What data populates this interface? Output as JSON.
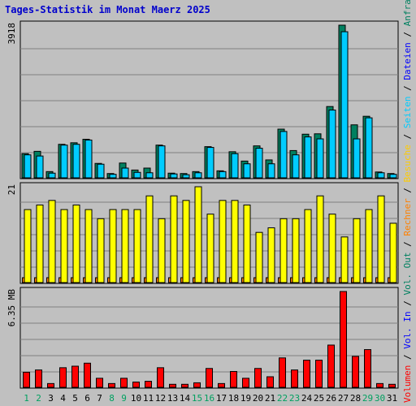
{
  "chart_data": {
    "type": "bar",
    "title": "Tages-Statistik im Monat Maerz 2025",
    "days": [
      "1",
      "2",
      "3",
      "4",
      "5",
      "6",
      "7",
      "8",
      "9",
      "10",
      "11",
      "12",
      "13",
      "14",
      "15",
      "16",
      "17",
      "18",
      "19",
      "20",
      "21",
      "22",
      "23",
      "24",
      "25",
      "26",
      "27",
      "28",
      "29",
      "30",
      "31"
    ],
    "weekend_days": [
      1,
      2,
      8,
      9,
      15,
      16,
      22,
      23,
      29,
      30
    ],
    "panels": [
      {
        "name": "requests-files",
        "ymax_label": "3918",
        "ymax": 3918,
        "series": [
          {
            "name": "Anfragen",
            "color": "#008060",
            "values": [
              620,
              680,
              160,
              860,
              900,
              990,
              370,
              110,
              380,
              200,
              250,
              840,
              120,
              110,
              160,
              800,
              180,
              670,
              430,
              820,
              460,
              1250,
              700,
              1120,
              1130,
              1830,
              3918,
              1360,
              1580,
              150,
              110
            ]
          },
          {
            "name": "Dateien",
            "color": "#00ccff",
            "values": [
              590,
              560,
              120,
              840,
              860,
              970,
              350,
              90,
              250,
              140,
              130,
              820,
              100,
              80,
              130,
              780,
              160,
              620,
              360,
              760,
              360,
              1190,
              590,
              1050,
              1000,
              1740,
              3750,
              1000,
              1540,
              130,
              90
            ]
          }
        ]
      },
      {
        "name": "pages-visits",
        "ymax_label": "21",
        "ymax": 21,
        "series": [
          {
            "name": "Seiten",
            "color": "#00ffff",
            "values": [
              1,
              1,
              1,
              1,
              1,
              1,
              1,
              1,
              1,
              1,
              1,
              1,
              1,
              1,
              1,
              1,
              1,
              1,
              1,
              1,
              1,
              1,
              1,
              1,
              1,
              1,
              1,
              1,
              1,
              1,
              1
            ]
          },
          {
            "name": "Besuche",
            "color": "#ffff00",
            "values": [
              16,
              17,
              18,
              16,
              17,
              16,
              14,
              16,
              16,
              16,
              19,
              14,
              19,
              18,
              21,
              15,
              18,
              18,
              17,
              11,
              12,
              14,
              14,
              16,
              19,
              15,
              10,
              14,
              16,
              19,
              13
            ]
          }
        ]
      },
      {
        "name": "volume",
        "ymax_label": "6.35 MB",
        "ymax": 6.35,
        "series": [
          {
            "name": "Volumen",
            "color": "#ff0000",
            "values": [
              1.0,
              1.15,
              0.25,
              1.3,
              1.4,
              1.6,
              0.6,
              0.25,
              0.6,
              0.35,
              0.4,
              1.3,
              0.2,
              0.2,
              0.3,
              1.25,
              0.25,
              1.05,
              0.6,
              1.25,
              0.7,
              1.95,
              1.15,
              1.8,
              1.8,
              2.8,
              6.35,
              2.05,
              2.5,
              0.25,
              0.2
            ]
          }
        ]
      }
    ],
    "legend": [
      {
        "text": "Volumen",
        "color": "#ff0000"
      },
      {
        "text": " / ",
        "color": "#000000"
      },
      {
        "text": "Vol. In",
        "color": "#0000ff"
      },
      {
        "text": " / ",
        "color": "#000000"
      },
      {
        "text": "Vol. Out",
        "color": "#008060"
      },
      {
        "text": " / ",
        "color": "#000000"
      },
      {
        "text": "Rechner",
        "color": "#ff8000"
      },
      {
        "text": " / ",
        "color": "#000000"
      },
      {
        "text": "Besuche",
        "color": "#ffcc00"
      },
      {
        "text": " / ",
        "color": "#000000"
      },
      {
        "text": "Seiten",
        "color": "#00ccff"
      },
      {
        "text": " / ",
        "color": "#000000"
      },
      {
        "text": "Dateien",
        "color": "#0000ff"
      },
      {
        "text": " / ",
        "color": "#000000"
      },
      {
        "text": "Anfragen",
        "color": "#008060"
      }
    ],
    "colors": {
      "background": "#c0c0c0",
      "grid": "#808080",
      "title": "#0000cc",
      "weekday_tick": "#000000",
      "weekend_tick": "#00a060"
    },
    "grid": true
  }
}
